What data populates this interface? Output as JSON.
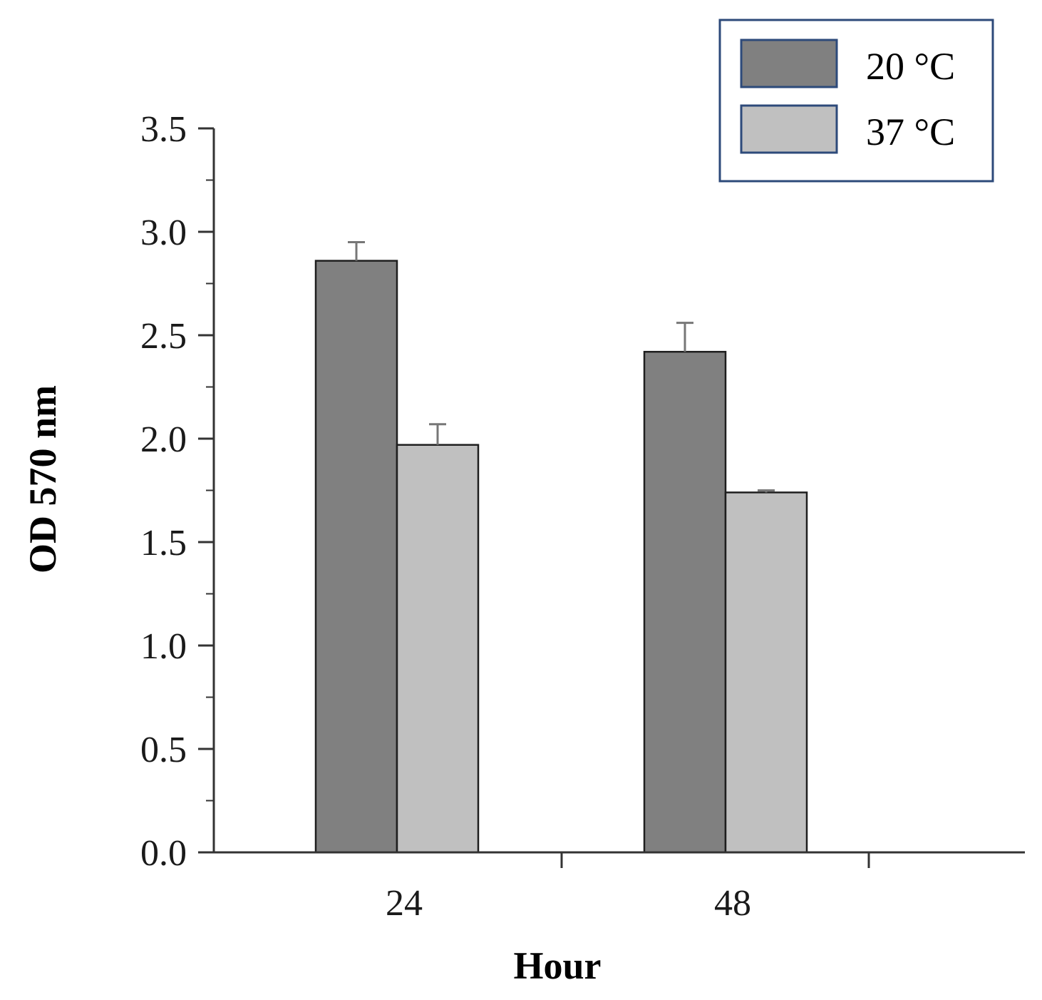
{
  "chart_data": {
    "type": "bar",
    "categories": [
      "24",
      "48"
    ],
    "series": [
      {
        "name": "20 °C",
        "values": [
          2.86,
          2.42
        ],
        "errors": [
          0.09,
          0.14
        ],
        "color": "#808080"
      },
      {
        "name": "37 °C",
        "values": [
          1.97,
          1.74
        ],
        "errors": [
          0.1,
          0.01
        ],
        "color": "#c0c0c0"
      }
    ],
    "title": "",
    "xlabel": "Hour",
    "ylabel": "OD 570 nm",
    "ylim": [
      0,
      3.5
    ],
    "yticks": [
      "0.0",
      "0.5",
      "1.0",
      "1.5",
      "2.0",
      "2.5",
      "3.0",
      "3.5"
    ],
    "grid": false,
    "legend_position": "top-right",
    "legend_border_color": "#2d4a7a"
  }
}
